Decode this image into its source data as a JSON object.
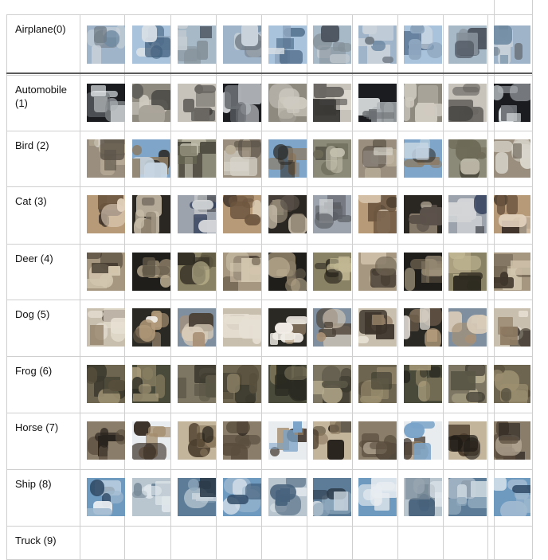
{
  "rows": [
    {
      "label": "Airplane(0)",
      "thumbs": 10,
      "palette": [
        [
          "#9fb4c8",
          "#6e8aa3",
          "#c9d2da",
          "#707a84"
        ],
        [
          "#a9c3dc",
          "#3d5b7a",
          "#8fa7bf",
          "#d8dfe6"
        ],
        [
          "#a7b8c6",
          "#4d5560",
          "#c4ccd2",
          "#85909a"
        ]
      ]
    },
    {
      "label": "Automobile\n(1)",
      "thumbs": 10,
      "palette": [
        [
          "#1a1c20",
          "#e9ecee",
          "#6b6f73",
          "#aeb3b7"
        ],
        [
          "#8e8a80",
          "#cfcac0",
          "#4b4a46",
          "#a9a49a"
        ],
        [
          "#c7c3bb",
          "#6a6763",
          "#e8e4dc",
          "#3a3936"
        ]
      ]
    },
    {
      "label": "Bird (2)",
      "thumbs": 10,
      "palette": [
        [
          "#9a8f7e",
          "#d9d5cc",
          "#5b5247",
          "#b8ad98"
        ],
        [
          "#7fa6c8",
          "#2d2b28",
          "#c7d6e3",
          "#8c7a62"
        ],
        [
          "#8b8a78",
          "#4e4b40",
          "#c3bfae",
          "#6d6a57"
        ]
      ]
    },
    {
      "label": "Cat (3)",
      "thumbs": 10,
      "palette": [
        [
          "#b79a78",
          "#6d5640",
          "#e1d2bd",
          "#3e3228"
        ],
        [
          "#2a2622",
          "#8e8270",
          "#5b524a",
          "#c8bda9"
        ],
        [
          "#9da3ad",
          "#5d6066",
          "#d2d4d6",
          "#2d3a58"
        ]
      ]
    },
    {
      "label": "Deer (4)",
      "thumbs": 10,
      "palette": [
        [
          "#a59780",
          "#6e6250",
          "#d3c6ae",
          "#3f362b"
        ],
        [
          "#1f1e1b",
          "#b4a68c",
          "#5f5546",
          "#8a7d66"
        ],
        [
          "#8a8264",
          "#544d39",
          "#c2b894",
          "#2e2a20"
        ]
      ]
    },
    {
      "label": "Dog (5)",
      "thumbs": 10,
      "palette": [
        [
          "#c9bfae",
          "#3b332a",
          "#8f7b63",
          "#e6dfd2"
        ],
        [
          "#2b2924",
          "#b49c7c",
          "#f1ede6",
          "#6a5a48"
        ],
        [
          "#7f8fa0",
          "#d8cbb8",
          "#4d4237",
          "#a89075"
        ]
      ]
    },
    {
      "label": "Frog (6)",
      "thumbs": 10,
      "palette": [
        [
          "#6e6550",
          "#3c3a2e",
          "#9b8f70",
          "#574f3c"
        ],
        [
          "#4a4a3a",
          "#82795e",
          "#2a2a22",
          "#a99c7c"
        ],
        [
          "#7d7662",
          "#5a5646",
          "#b3a98d",
          "#3b382e"
        ]
      ]
    },
    {
      "label": "Horse (7)",
      "thumbs": 10,
      "palette": [
        [
          "#8a7e6a",
          "#2a241e",
          "#bfb3a0",
          "#5a4d3e"
        ],
        [
          "#e9ecef",
          "#7aa3c8",
          "#a38b6c",
          "#3b3128"
        ],
        [
          "#c2b59c",
          "#4e3f2e",
          "#8c7a60",
          "#1d1914"
        ]
      ]
    },
    {
      "label": "Ship (8)",
      "thumbs": 10,
      "palette": [
        [
          "#6f9ac0",
          "#e8edf1",
          "#2f4a66",
          "#9fb9cf"
        ],
        [
          "#b9c6cf",
          "#47627c",
          "#dfe6eb",
          "#7a8c99"
        ],
        [
          "#5c7c98",
          "#c8d4dd",
          "#2c3b4a",
          "#8ea7bb"
        ]
      ]
    },
    {
      "label": "Truck (9)",
      "thumbs": 0,
      "palette": []
    }
  ]
}
